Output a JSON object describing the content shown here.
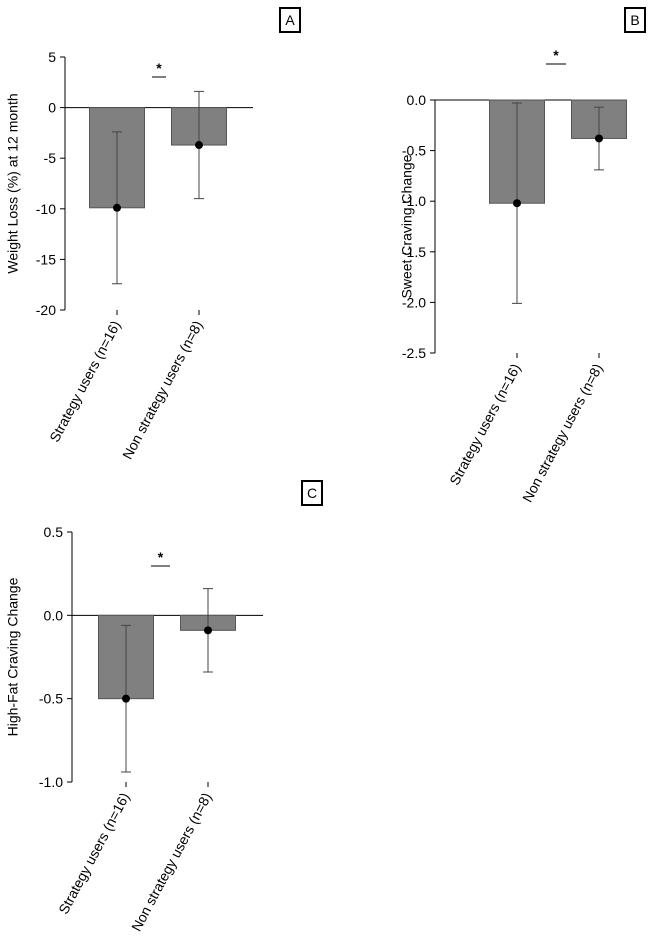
{
  "chart_data": [
    {
      "type": "bar",
      "panel_label": "A",
      "ylabel": "Weight Loss (%) at 12 month",
      "significance": "*",
      "categories": [
        "Strategy users (n=16)",
        "Non strategy users (n=8)"
      ],
      "values": [
        -9.9,
        -3.7
      ],
      "errors": [
        7.5,
        5.3
      ],
      "color": "#808080",
      "ylim": [
        -20,
        5
      ],
      "yticks": [
        -20,
        -15,
        -10,
        -5,
        0,
        5
      ]
    },
    {
      "type": "bar",
      "panel_label": "B",
      "ylabel": "Sweet Craving Change",
      "significance": "*",
      "categories": [
        "Strategy users (n=16)",
        "Non strategy users (n=8)"
      ],
      "values": [
        -1.02,
        -0.38
      ],
      "errors": [
        0.99,
        0.31
      ],
      "color": "#808080",
      "ylim": [
        -2.5,
        0
      ],
      "yticks": [
        -2.5,
        {
          "value": -2,
          "label": "-2.0"
        },
        -1.5,
        {
          "value": -1,
          "label": "-1.0"
        },
        -0.5,
        {
          "value": 0,
          "label": "0.0"
        }
      ]
    },
    {
      "type": "bar",
      "panel_label": "C",
      "ylabel": "High-Fat Craving Change",
      "significance": "*",
      "categories": [
        "Strategy users (n=16)",
        "Non strategy users (n=8)"
      ],
      "values": [
        -0.5,
        -0.09
      ],
      "errors": [
        0.44,
        0.25
      ],
      "color": "#808080",
      "ylim": [
        -1,
        0.5
      ],
      "yticks": [
        {
          "value": -1,
          "label": "-1.0"
        },
        -0.5,
        {
          "value": 0,
          "label": "0.0"
        },
        0.5
      ]
    }
  ]
}
